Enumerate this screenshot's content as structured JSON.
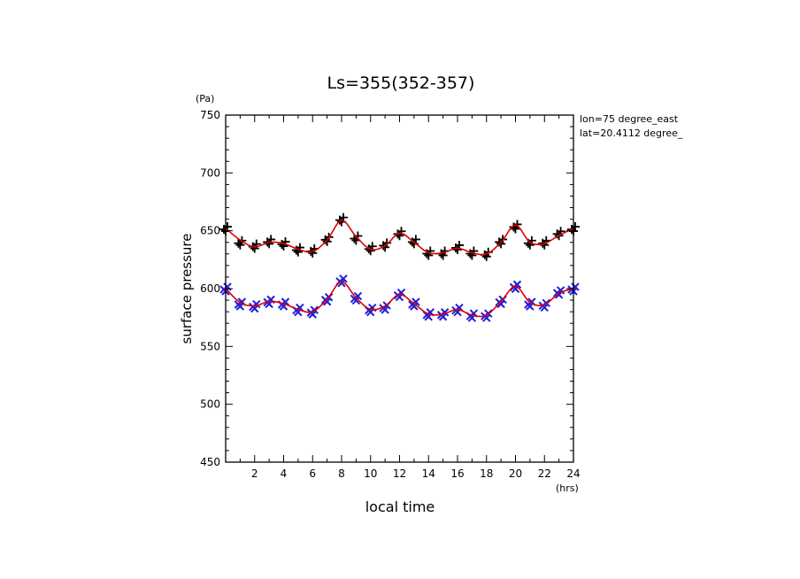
{
  "chart_data": {
    "type": "line",
    "title": "Ls=355(352-357)",
    "xlabel": "local time",
    "ylabel": "surface pressure",
    "x_unit": "(hrs)",
    "y_unit": "(Pa)",
    "annotations": [
      "lon=75 degree_east",
      "lat=20.4112 degree_"
    ],
    "xlim": [
      0,
      24
    ],
    "ylim": [
      450,
      750
    ],
    "x_ticks": [
      2,
      4,
      6,
      8,
      10,
      12,
      14,
      16,
      18,
      20,
      22,
      24
    ],
    "y_ticks": [
      450,
      500,
      550,
      600,
      650,
      700,
      750
    ],
    "grid": false,
    "colors": {
      "fit": "#dd0000",
      "upper_markers": "#000000",
      "lower_markers": "#1f1fdd"
    },
    "series": [
      {
        "marker": "plus",
        "color": "#000000",
        "x": [
          0,
          1,
          2,
          3,
          4,
          5,
          6,
          7,
          8,
          9,
          10,
          11,
          12,
          13,
          14,
          15,
          16,
          17,
          18,
          19,
          20,
          21,
          22,
          23,
          24
        ],
        "values": [
          652,
          640,
          637,
          641,
          639,
          634,
          633,
          643,
          660,
          644,
          635,
          638,
          648,
          641,
          631,
          631,
          636,
          631,
          630,
          641,
          654,
          640,
          640,
          648,
          652
        ]
      },
      {
        "marker": "cross",
        "color": "#1f1fdd",
        "x": [
          0,
          1,
          2,
          3,
          4,
          5,
          6,
          7,
          8,
          9,
          10,
          11,
          12,
          13,
          14,
          15,
          16,
          17,
          18,
          19,
          20,
          21,
          22,
          23,
          24
        ],
        "values": [
          600,
          587,
          585,
          589,
          587,
          582,
          580,
          591,
          607,
          592,
          582,
          584,
          595,
          587,
          578,
          578,
          582,
          577,
          577,
          589,
          602,
          587,
          586,
          597,
          600
        ]
      }
    ],
    "fit_series": [
      {
        "x": [
          0,
          1,
          2,
          3,
          4,
          5,
          6,
          7,
          8,
          9,
          10,
          11,
          12,
          13,
          14,
          15,
          16,
          17,
          18,
          19,
          20,
          21,
          22,
          23,
          24
        ],
        "values": [
          652,
          642,
          636,
          640,
          639,
          634,
          632,
          642,
          659,
          645,
          634,
          637,
          648,
          640,
          631,
          631,
          635,
          631,
          630,
          640,
          655,
          640,
          639,
          646,
          652
        ]
      },
      {
        "x": [
          0,
          1,
          2,
          3,
          4,
          5,
          6,
          7,
          8,
          9,
          10,
          11,
          12,
          13,
          14,
          15,
          16,
          17,
          18,
          19,
          20,
          21,
          22,
          23,
          24
        ],
        "values": [
          600,
          588,
          585,
          589,
          587,
          582,
          580,
          591,
          606,
          592,
          582,
          585,
          595,
          587,
          578,
          578,
          582,
          577,
          577,
          589,
          602,
          588,
          586,
          596,
          600
        ]
      }
    ]
  }
}
